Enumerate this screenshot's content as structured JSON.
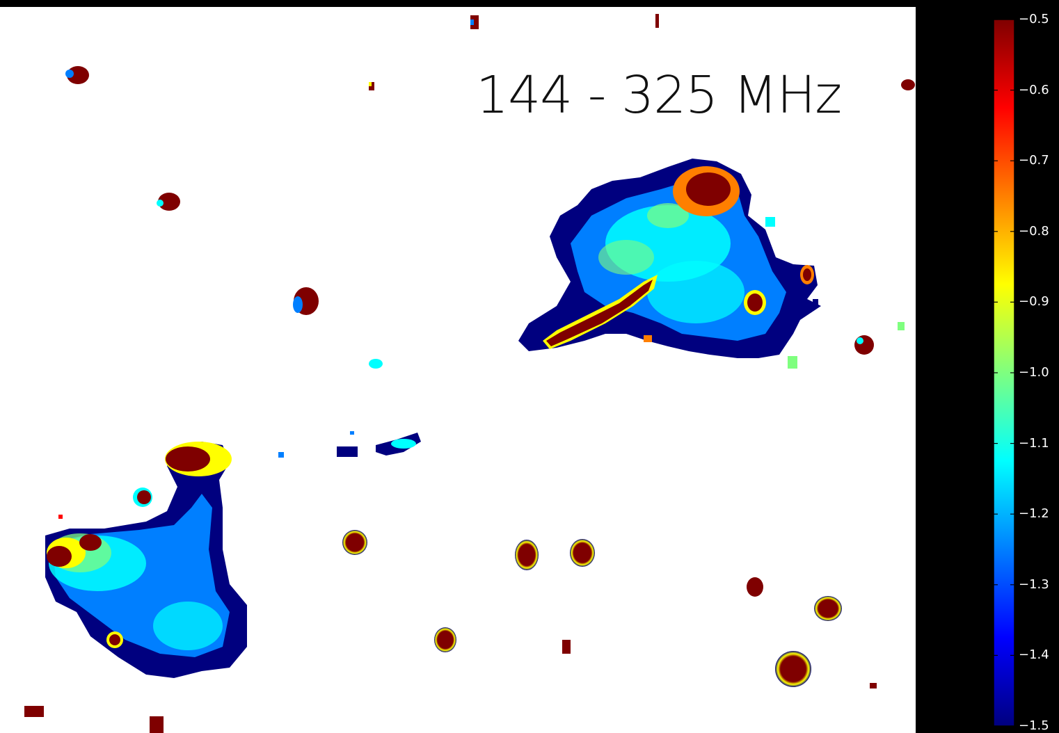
{
  "figure": {
    "title": "144 - 325 MHz"
  },
  "colorbar": {
    "vmin": -1.5,
    "vmax": -0.5,
    "colormap": "jet",
    "colors": [
      "#00007f",
      "#0000ff",
      "#007fff",
      "#00ffff",
      "#7fff7f",
      "#ffff00",
      "#ff7f00",
      "#ff0000",
      "#7f0000"
    ],
    "tick_labels": [
      "−0.5",
      "−0.6",
      "−0.7",
      "−0.8",
      "−0.9",
      "−1.0",
      "−1.1",
      "−1.2",
      "−1.3",
      "−1.4",
      "−1.5"
    ],
    "tick_values": [
      -0.5,
      -0.6,
      -0.7,
      -0.8,
      -0.9,
      -1.0,
      -1.1,
      -1.2,
      -1.3,
      -1.4,
      -1.5
    ]
  },
  "map": {
    "background": "#ffffff",
    "frame": "#000000"
  }
}
